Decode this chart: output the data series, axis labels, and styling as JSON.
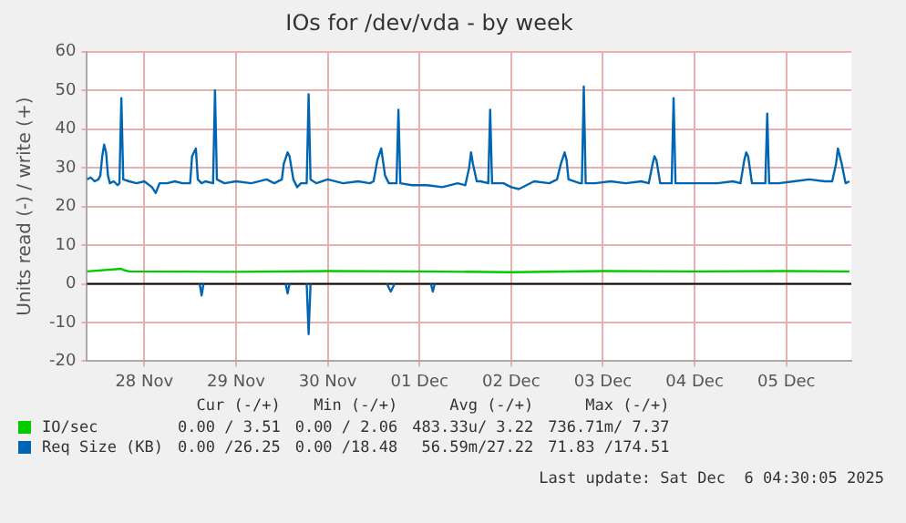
{
  "chart_data": {
    "type": "line",
    "title": "IOs for /dev/vda - by week",
    "ylabel": "Units read (-) / write (+)",
    "xlim": [
      "2025-11-27T21:00",
      "2025-12-06T05:00"
    ],
    "xticks": [
      {
        "value": "2025-11-28T12:00",
        "label": "28 Nov"
      },
      {
        "value": "2025-11-29T12:00",
        "label": "29 Nov"
      },
      {
        "value": "2025-11-30T12:00",
        "label": "30 Nov"
      },
      {
        "value": "2025-12-01T12:00",
        "label": "01 Dec"
      },
      {
        "value": "2025-12-02T12:00",
        "label": "02 Dec"
      },
      {
        "value": "2025-12-03T12:00",
        "label": "03 Dec"
      },
      {
        "value": "2025-12-04T12:00",
        "label": "04 Dec"
      },
      {
        "value": "2025-12-05T12:00",
        "label": "05 Dec"
      }
    ],
    "ylim": [
      -20,
      60
    ],
    "yticks": [
      -20,
      -10,
      0,
      10,
      20,
      30,
      40,
      50,
      60
    ],
    "grid": true,
    "legend": "bottom",
    "marker": "none",
    "line_style": "solid",
    "ref_lines": [
      {
        "axis": "y",
        "value": 0,
        "color": "#000000"
      }
    ],
    "series": [
      {
        "name": "IO/sec",
        "color": "#00cc00",
        "x": [
          "2025-11-27T21:00",
          "2025-11-28T06:00",
          "2025-11-28T06:30",
          "2025-11-28T08:00",
          "2025-11-29T12:00",
          "2025-11-30T12:00",
          "2025-12-01T12:00",
          "2025-12-02T12:00",
          "2025-12-03T12:00",
          "2025-12-04T12:00",
          "2025-12-05T12:00",
          "2025-12-06T04:30"
        ],
        "values": [
          3.2,
          3.9,
          3.6,
          3.2,
          3.1,
          3.3,
          3.2,
          3.0,
          3.3,
          3.2,
          3.3,
          3.2
        ]
      },
      {
        "name": "Req Size (KB)",
        "color": "#0066b3",
        "x": [
          "2025-11-27T21:00",
          "2025-11-27T22:00",
          "2025-11-27T23:00",
          "2025-11-28T00:00",
          "2025-11-28T00:30",
          "2025-11-28T01:00",
          "2025-11-28T01:30",
          "2025-11-28T02:00",
          "2025-11-28T02:30",
          "2025-11-28T03:00",
          "2025-11-28T04:00",
          "2025-11-28T05:00",
          "2025-11-28T05:30",
          "2025-11-28T06:00",
          "2025-11-28T06:30",
          "2025-11-28T08:00",
          "2025-11-28T10:00",
          "2025-11-28T12:00",
          "2025-11-28T14:00",
          "2025-11-28T15:00",
          "2025-11-28T16:00",
          "2025-11-28T18:00",
          "2025-11-28T20:00",
          "2025-11-28T22:00",
          "2025-11-29T00:00",
          "2025-11-29T00:30",
          "2025-11-29T01:00",
          "2025-11-29T01:30",
          "2025-11-29T02:00",
          "2025-11-29T03:00",
          "2025-11-29T04:00",
          "2025-11-29T06:00",
          "2025-11-29T06:30",
          "2025-11-29T07:00",
          "2025-11-29T09:00",
          "2025-11-29T12:00",
          "2025-11-29T16:00",
          "2025-11-29T20:00",
          "2025-11-29T22:00",
          "2025-11-30T00:00",
          "2025-11-30T00:30",
          "2025-11-30T01:30",
          "2025-11-30T02:00",
          "2025-11-30T03:00",
          "2025-11-30T04:00",
          "2025-11-30T05:00",
          "2025-11-30T06:30",
          "2025-11-30T07:00",
          "2025-11-30T07:30",
          "2025-11-30T09:00",
          "2025-11-30T12:00",
          "2025-11-30T16:00",
          "2025-11-30T20:00",
          "2025-11-30T23:00",
          "2025-12-01T00:00",
          "2025-12-01T01:00",
          "2025-12-01T02:00",
          "2025-12-01T03:00",
          "2025-12-01T04:00",
          "2025-12-01T05:00",
          "2025-12-01T06:00",
          "2025-12-01T06:30",
          "2025-12-01T07:00",
          "2025-12-01T10:00",
          "2025-12-01T14:00",
          "2025-12-01T18:00",
          "2025-12-01T22:00",
          "2025-12-02T00:00",
          "2025-12-02T01:00",
          "2025-12-02T01:30",
          "2025-12-02T02:00",
          "2025-12-02T03:00",
          "2025-12-02T04:00",
          "2025-12-02T06:00",
          "2025-12-02T06:30",
          "2025-12-02T07:00",
          "2025-12-02T10:00",
          "2025-12-02T12:00",
          "2025-12-02T14:00",
          "2025-12-02T18:00",
          "2025-12-02T22:00",
          "2025-12-03T00:00",
          "2025-12-03T01:00",
          "2025-12-03T02:00",
          "2025-12-03T02:30",
          "2025-12-03T03:00",
          "2025-12-03T06:00",
          "2025-12-03T06:30",
          "2025-12-03T07:00",
          "2025-12-03T07:30",
          "2025-12-03T10:00",
          "2025-12-03T14:00",
          "2025-12-03T18:00",
          "2025-12-03T22:00",
          "2025-12-04T00:00",
          "2025-12-04T01:00",
          "2025-12-04T01:30",
          "2025-12-04T02:00",
          "2025-12-04T03:00",
          "2025-12-04T06:00",
          "2025-12-04T06:30",
          "2025-12-04T07:00",
          "2025-12-04T10:00",
          "2025-12-04T14:00",
          "2025-12-04T18:00",
          "2025-12-04T22:00",
          "2025-12-05T00:00",
          "2025-12-05T01:00",
          "2025-12-05T01:30",
          "2025-12-05T02:00",
          "2025-12-05T03:00",
          "2025-12-05T06:30",
          "2025-12-05T07:00",
          "2025-12-05T07:30",
          "2025-12-05T10:00",
          "2025-12-05T14:00",
          "2025-12-05T18:00",
          "2025-12-05T22:00",
          "2025-12-06T00:00",
          "2025-12-06T01:00",
          "2025-12-06T01:30",
          "2025-12-06T02:30",
          "2025-12-06T03:30",
          "2025-12-06T04:30"
        ],
        "values": [
          27,
          27.5,
          26.5,
          27,
          28,
          33,
          36,
          34,
          28,
          26,
          26.5,
          25.5,
          26,
          48,
          27,
          26.5,
          26,
          26.5,
          25,
          23.5,
          26,
          26,
          26.5,
          26,
          26,
          33,
          34,
          35,
          27,
          26,
          26.5,
          26,
          50,
          27,
          26,
          26.5,
          26,
          27,
          26,
          27,
          31,
          34,
          33,
          27,
          25,
          26,
          26,
          49,
          27,
          26,
          27,
          26,
          26.5,
          26,
          26.5,
          32,
          35,
          28,
          26,
          26,
          26,
          45,
          26,
          25.5,
          25.5,
          25,
          26,
          25.5,
          30,
          34,
          31,
          26.5,
          26.5,
          26,
          45,
          26,
          26,
          25,
          24.5,
          26.5,
          26,
          27,
          31,
          34,
          32,
          27,
          26,
          26,
          51,
          26,
          26,
          26.5,
          26,
          26.5,
          26,
          31,
          33,
          32,
          26,
          26,
          48,
          26,
          26,
          26,
          26,
          26.5,
          26,
          32,
          34,
          33,
          26,
          26,
          44,
          26,
          26,
          26.5,
          27,
          26.5,
          26.5,
          31,
          35,
          31,
          26,
          26.5
        ]
      },
      {
        "color": "#0066b3",
        "x": [
          "2025-11-29T02:30",
          "2025-11-29T03:00",
          "2025-11-29T03:30",
          "2025-11-29T12:00",
          "2025-11-30T01:00",
          "2025-11-30T01:30",
          "2025-11-30T02:00",
          "2025-11-30T04:00",
          "2025-11-30T06:30",
          "2025-11-30T07:00",
          "2025-11-30T07:30",
          "2025-11-30T12:00",
          "2025-12-01T03:30",
          "2025-12-01T04:30",
          "2025-12-01T05:30",
          "2025-12-01T10:00",
          "2025-12-01T15:00",
          "2025-12-01T15:30",
          "2025-12-01T16:00"
        ],
        "values": [
          0,
          -3,
          0,
          null,
          0,
          -2.5,
          0,
          null,
          0,
          -13,
          0,
          null,
          0,
          -2,
          0,
          null,
          0,
          -2,
          0
        ]
      }
    ],
    "annotations": [
      "Cur (-/+)",
      "Min (-/+)",
      "Avg (-/+)",
      "Max (-/+)",
      "0.00 / 3.51",
      "0.00 / 2.06",
      "483.33u/ 3.22",
      "736.71m/ 7.37",
      "0.00 /26.25",
      "0.00 /18.48",
      "56.59m/27.22",
      "71.83 /174.51",
      "Last update: Sat Dec  6 04:30:05 2025"
    ]
  }
}
